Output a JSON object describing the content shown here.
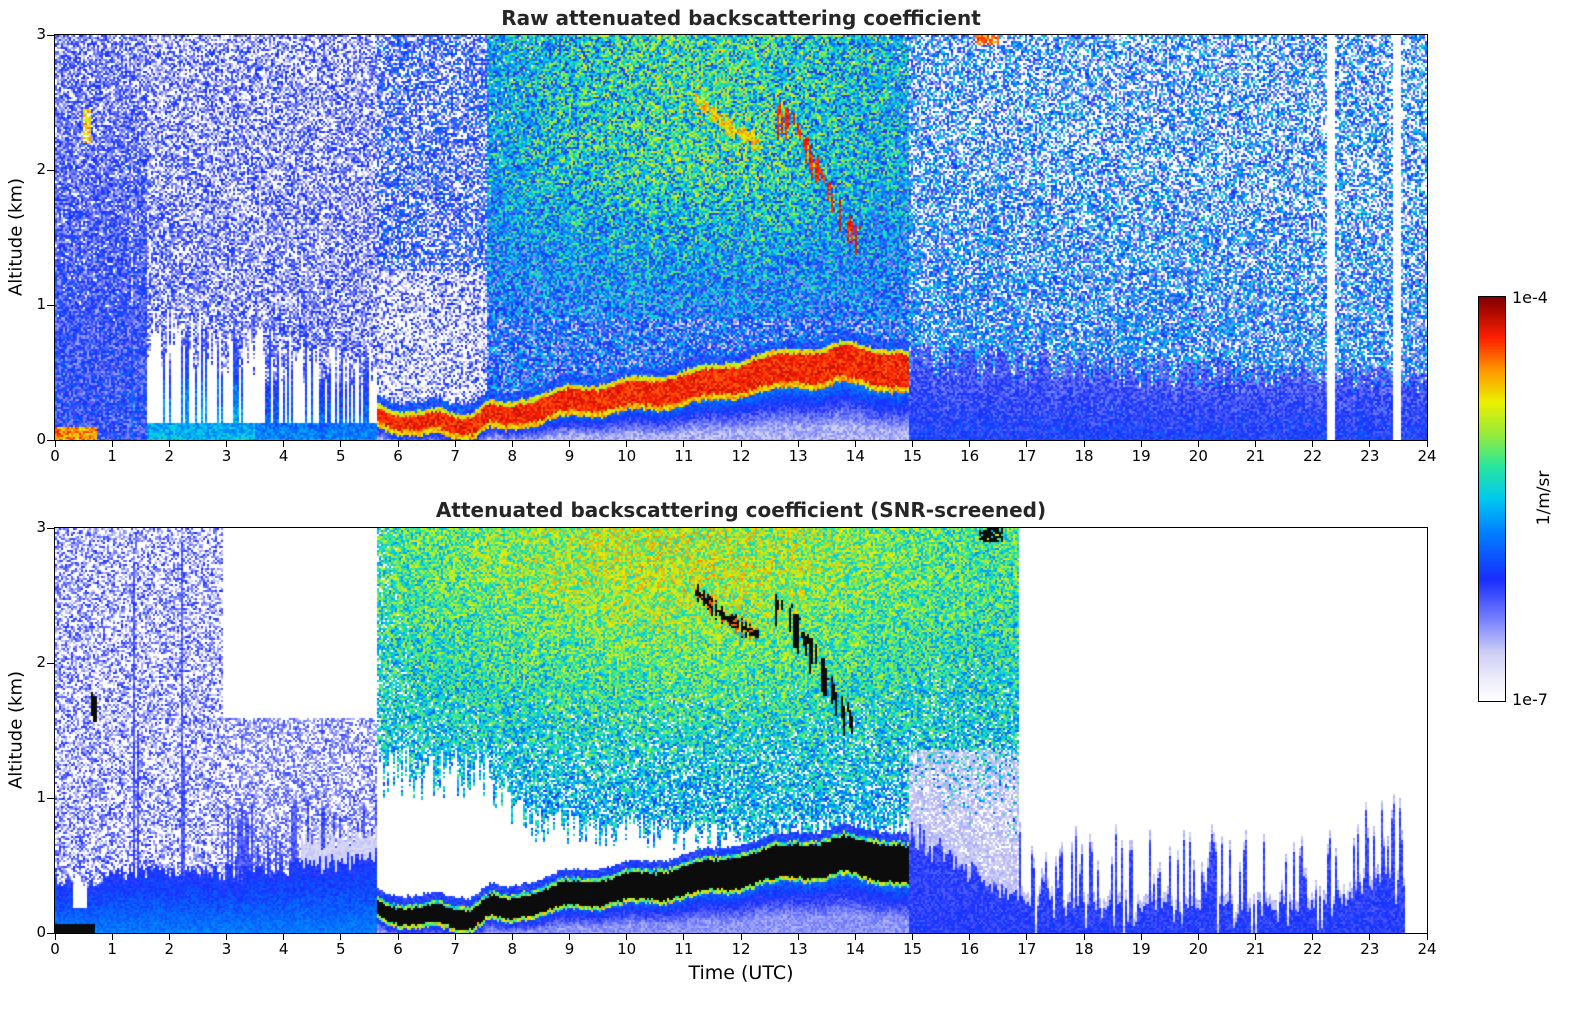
{
  "colorbar": {
    "max_label": "1e-4",
    "min_label": "1e-7",
    "axis_label": "1/m/sr"
  },
  "chart_data": [
    {
      "type": "heatmap",
      "title": "Raw attenuated backscattering coefficient",
      "xlabel": "",
      "ylabel": "Altitude (km)",
      "xlim": [
        0,
        24
      ],
      "ylim": [
        0,
        3
      ],
      "xticks": [
        "0",
        "1",
        "2",
        "3",
        "4",
        "5",
        "6",
        "7",
        "8",
        "9",
        "10",
        "11",
        "12",
        "13",
        "14",
        "15",
        "16",
        "17",
        "18",
        "19",
        "20",
        "21",
        "22",
        "23",
        "24"
      ],
      "yticks": [
        "0",
        "1",
        "2",
        "3"
      ],
      "value_units": "1/m/sr",
      "value_scale": {
        "type": "log",
        "min": 1e-07,
        "max": 0.0001
      },
      "colormap": "jet_with_white_low",
      "screened": false,
      "features": {
        "surface_plume_utc": [
          5.62,
          14.95
        ],
        "surface_plume_height_km": [
          [
            5.62,
            0.22
          ],
          [
            6.0,
            0.15
          ],
          [
            6.4,
            0.13
          ],
          [
            6.7,
            0.18
          ],
          [
            7.0,
            0.15
          ],
          [
            7.3,
            0.13
          ],
          [
            7.6,
            0.21
          ],
          [
            7.9,
            0.19
          ],
          [
            8.2,
            0.23
          ],
          [
            8.6,
            0.25
          ],
          [
            9.0,
            0.29
          ],
          [
            9.5,
            0.31
          ],
          [
            10.0,
            0.34
          ],
          [
            10.5,
            0.37
          ],
          [
            11.0,
            0.41
          ],
          [
            11.5,
            0.45
          ],
          [
            12.0,
            0.49
          ],
          [
            12.5,
            0.52
          ],
          [
            13.0,
            0.56
          ],
          [
            13.4,
            0.54
          ],
          [
            13.8,
            0.58
          ],
          [
            14.2,
            0.56
          ],
          [
            14.6,
            0.53
          ],
          [
            14.95,
            0.5
          ]
        ],
        "cloud_streak_km": [
          [
            12.65,
            2.42
          ],
          [
            12.85,
            2.38
          ],
          [
            13.05,
            2.25
          ],
          [
            13.25,
            2.1
          ],
          [
            13.45,
            1.95
          ],
          [
            13.65,
            1.8
          ],
          [
            13.85,
            1.65
          ],
          [
            14.05,
            1.52
          ]
        ],
        "cloud_streak_faint_km": [
          [
            11.25,
            2.52
          ],
          [
            11.5,
            2.42
          ],
          [
            11.75,
            2.33
          ],
          [
            12.0,
            2.27
          ],
          [
            12.25,
            2.22
          ]
        ],
        "morning_bl_top_km": [
          [
            0,
            0.85
          ],
          [
            0.8,
            0.95
          ],
          [
            1.6,
            1.05
          ],
          [
            2.4,
            1.0
          ],
          [
            3.2,
            0.95
          ],
          [
            4.0,
            0.85
          ],
          [
            5.0,
            0.78
          ],
          [
            5.62,
            0.7
          ]
        ],
        "evening_bl_top_km": [
          [
            14.95,
            0.8
          ],
          [
            16,
            0.72
          ],
          [
            18,
            0.66
          ],
          [
            20,
            0.62
          ],
          [
            22,
            0.6
          ],
          [
            24,
            0.55
          ]
        ],
        "morning_gap_utc": [
          0.33,
          0.55
        ],
        "white_columns_utc": [
          [
            22.24,
            22.38
          ],
          [
            23.42,
            23.56
          ]
        ],
        "attenuation_gap_utc": [
          5.62,
          7.55
        ],
        "surface_hot_strip": {
          "utc": [
            0,
            0.75
          ],
          "top_km": 0.1
        }
      }
    },
    {
      "type": "heatmap",
      "title": "Attenuated backscattering coefficient (SNR-screened)",
      "xlabel": "Time (UTC)",
      "ylabel": "Altitude (km)",
      "xlim": [
        0,
        24
      ],
      "ylim": [
        0,
        3
      ],
      "xticks": [
        "0",
        "1",
        "2",
        "3",
        "4",
        "5",
        "6",
        "7",
        "8",
        "9",
        "10",
        "11",
        "12",
        "13",
        "14",
        "15",
        "16",
        "17",
        "18",
        "19",
        "20",
        "21",
        "22",
        "23",
        "24"
      ],
      "yticks": [
        "0",
        "1",
        "2",
        "3"
      ],
      "value_units": "1/m/sr",
      "value_scale": {
        "type": "log",
        "min": 1e-07,
        "max": 0.0001
      },
      "colormap": "jet_with_white_low",
      "screened": true,
      "data_end_utc": 23.62,
      "features": {
        "surface_plume_utc": [
          5.62,
          14.95
        ],
        "surface_plume_height_km": [
          [
            5.62,
            0.22
          ],
          [
            6.0,
            0.15
          ],
          [
            6.4,
            0.13
          ],
          [
            6.7,
            0.18
          ],
          [
            7.0,
            0.15
          ],
          [
            7.3,
            0.13
          ],
          [
            7.6,
            0.21
          ],
          [
            7.9,
            0.19
          ],
          [
            8.2,
            0.23
          ],
          [
            8.6,
            0.25
          ],
          [
            9.0,
            0.29
          ],
          [
            9.5,
            0.31
          ],
          [
            10.0,
            0.34
          ],
          [
            10.5,
            0.37
          ],
          [
            11.0,
            0.41
          ],
          [
            11.5,
            0.45
          ],
          [
            12.0,
            0.49
          ],
          [
            12.5,
            0.52
          ],
          [
            13.0,
            0.56
          ],
          [
            13.4,
            0.54
          ],
          [
            13.8,
            0.58
          ],
          [
            14.2,
            0.56
          ],
          [
            14.6,
            0.53
          ],
          [
            14.95,
            0.5
          ]
        ],
        "cloud_streak_km": [
          [
            12.65,
            2.42
          ],
          [
            12.85,
            2.38
          ],
          [
            13.05,
            2.25
          ],
          [
            13.25,
            2.1
          ],
          [
            13.45,
            1.95
          ],
          [
            13.65,
            1.8
          ],
          [
            13.85,
            1.65
          ],
          [
            14.05,
            1.52
          ]
        ],
        "cloud_streak_faint_km": [
          [
            11.25,
            2.52
          ],
          [
            11.5,
            2.42
          ],
          [
            11.75,
            2.33
          ],
          [
            12.0,
            2.27
          ],
          [
            12.25,
            2.22
          ]
        ],
        "morning_low_top_km": [
          [
            0,
            0.45
          ],
          [
            0.5,
            0.42
          ],
          [
            1.0,
            0.5
          ],
          [
            1.8,
            0.52
          ],
          [
            2.6,
            0.5
          ],
          [
            3.4,
            0.52
          ],
          [
            4.2,
            0.55
          ],
          [
            5.0,
            0.6
          ],
          [
            5.62,
            0.64
          ]
        ],
        "morning_gap_utc": [
          0.33,
          0.55
        ],
        "striation_band_utc": [
          2.95,
          5.62
        ],
        "striation_top_km": 1.4,
        "elevated_field": {
          "utc": [
            5.3,
            16.85
          ],
          "bottom_km": [
            [
              5.3,
              1.45
            ],
            [
              7.6,
              1.35
            ],
            [
              8.3,
              0.95
            ],
            [
              10,
              0.9
            ],
            [
              12,
              0.82
            ],
            [
              15,
              0.9
            ],
            [
              16.85,
              1.0
            ]
          ]
        },
        "solid_layer_top_km": [
          [
            14.95,
            0.95
          ],
          [
            15.5,
            0.75
          ],
          [
            16.0,
            0.6
          ],
          [
            16.5,
            0.45
          ],
          [
            17.0,
            0.34
          ],
          [
            18,
            0.3
          ],
          [
            19,
            0.3
          ],
          [
            20,
            0.3
          ],
          [
            21,
            0.3
          ],
          [
            22,
            0.31
          ],
          [
            22.6,
            0.36
          ],
          [
            23.0,
            0.5
          ],
          [
            23.3,
            0.56
          ],
          [
            23.62,
            0.5
          ]
        ],
        "spike_columns": [
          [
            1.38,
            2.75
          ],
          [
            1.44,
            1.5
          ],
          [
            2.21,
            2.9
          ],
          [
            2.27,
            1.3
          ]
        ],
        "black_marks": [
          [
            0.64,
            1.7
          ],
          [
            0.7,
            1.66
          ]
        ],
        "top_black_specks_utc": [
          16.15,
          16.6
        ],
        "surface_black_strip": {
          "utc": [
            0,
            0.7
          ],
          "top_km": 0.07
        }
      }
    }
  ]
}
